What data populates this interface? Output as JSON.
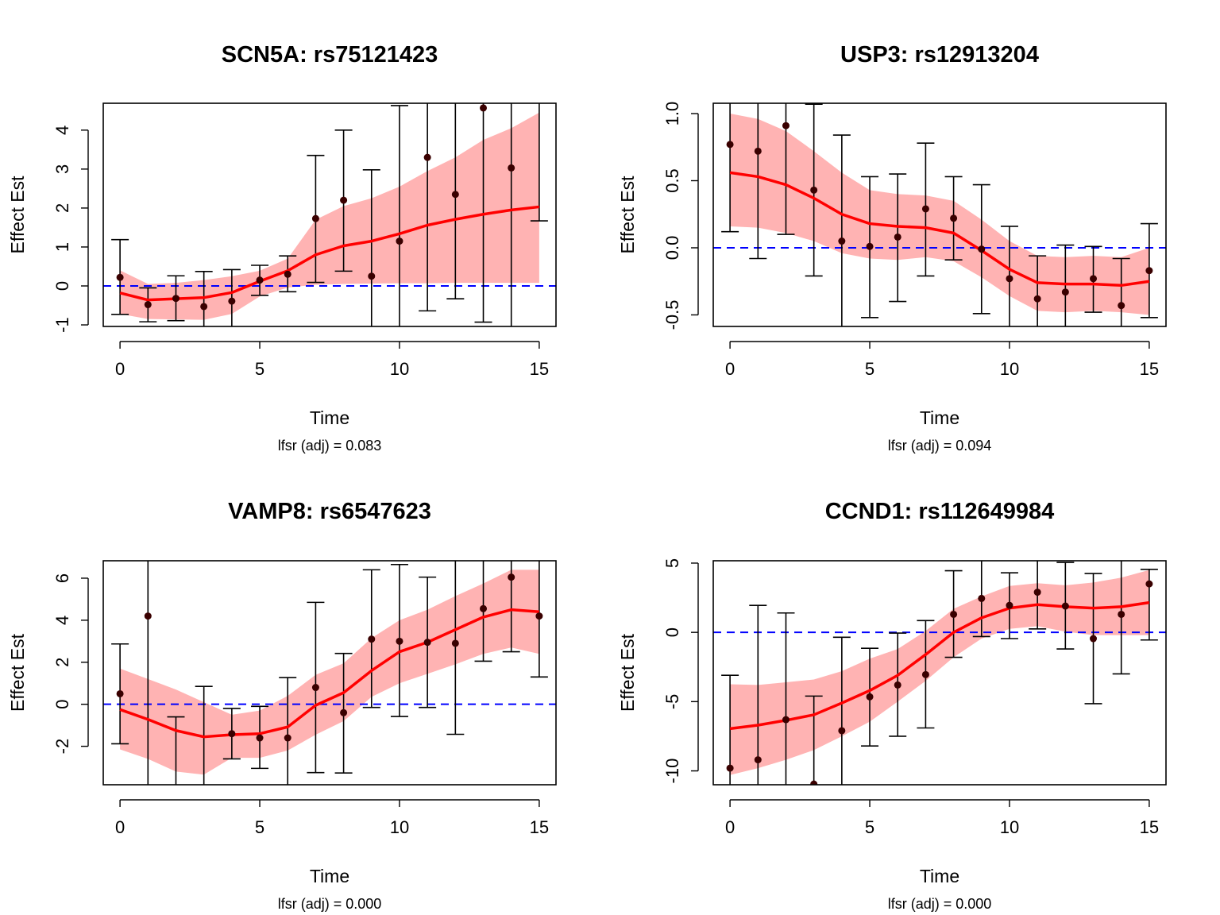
{
  "chart_data": [
    {
      "type": "line",
      "title": "SCN5A: rs75121423",
      "xlabel": "Time",
      "ylabel": "Effect Est",
      "subtitle": "lfsr (adj) = 0.083",
      "xlim": [
        -0.6,
        15.6
      ],
      "ylim": [
        -1.04,
        4.69
      ],
      "xticks": [
        0,
        5,
        10,
        15
      ],
      "yticks": [
        -1,
        0,
        1,
        2,
        3,
        4
      ],
      "reference_line": 0,
      "x": [
        0,
        1,
        2,
        3,
        4,
        5,
        6,
        7,
        8,
        9,
        10,
        11,
        12,
        13,
        14,
        15
      ],
      "points": [
        0.22,
        -0.48,
        -0.32,
        -0.53,
        -0.39,
        0.15,
        0.3,
        1.73,
        2.2,
        0.25,
        1.15,
        3.3,
        2.35,
        4.57,
        3.03,
        null
      ],
      "err_lower": [
        -0.73,
        -0.92,
        -0.89,
        -1.1,
        -1.1,
        -0.24,
        -0.15,
        0.09,
        0.38,
        -1.1,
        -1.1,
        -0.64,
        -0.33,
        -0.93,
        -1.1,
        1.67
      ],
      "err_upper": [
        1.19,
        -0.05,
        0.26,
        0.37,
        0.42,
        0.53,
        0.77,
        3.35,
        4.0,
        2.98,
        4.63,
        4.7,
        4.7,
        4.7,
        4.7,
        4.7
      ],
      "fit": [
        -0.18,
        -0.36,
        -0.33,
        -0.3,
        -0.17,
        0.12,
        0.39,
        0.8,
        1.03,
        1.15,
        1.34,
        1.56,
        1.71,
        1.84,
        1.95,
        2.03
      ],
      "band_lower": [
        -0.72,
        -0.85,
        -0.86,
        -0.87,
        -0.72,
        -0.27,
        -0.04,
        0.03,
        0.05,
        0.06,
        0.07,
        0.07,
        0.08,
        0.08,
        0.08,
        0.08
      ],
      "band_upper": [
        0.4,
        0.05,
        0.08,
        0.15,
        0.25,
        0.39,
        0.7,
        1.7,
        2.05,
        2.25,
        2.55,
        2.95,
        3.3,
        3.75,
        4.05,
        4.45
      ]
    },
    {
      "type": "line",
      "title": "USP3: rs12913204",
      "xlabel": "Time",
      "ylabel": "Effect Est",
      "subtitle": "lfsr (adj) = 0.094",
      "xlim": [
        -0.6,
        15.6
      ],
      "ylim": [
        -0.586,
        1.077
      ],
      "xticks": [
        0,
        5,
        10,
        15
      ],
      "yticks": [
        -0.5,
        0.0,
        0.5,
        1.0
      ],
      "ytick_labels": [
        "-0.5",
        "0.0",
        "0.5",
        "1.0"
      ],
      "reference_line": 0,
      "x": [
        0,
        1,
        2,
        3,
        4,
        5,
        6,
        7,
        8,
        9,
        10,
        11,
        12,
        13,
        14,
        15
      ],
      "points": [
        0.77,
        0.72,
        0.91,
        0.43,
        0.05,
        0.01,
        0.08,
        0.29,
        0.22,
        -0.01,
        -0.23,
        -0.38,
        -0.33,
        -0.23,
        -0.43,
        -0.17
      ],
      "err_lower": [
        0.12,
        -0.08,
        0.1,
        -0.21,
        -0.6,
        -0.52,
        -0.4,
        -0.21,
        -0.09,
        -0.49,
        -0.6,
        -0.6,
        -0.6,
        -0.48,
        -0.6,
        -0.52
      ],
      "err_upper": [
        1.08,
        1.08,
        1.08,
        1.07,
        0.84,
        0.53,
        0.55,
        0.78,
        0.53,
        0.47,
        0.16,
        -0.06,
        0.02,
        0.01,
        -0.08,
        0.18
      ],
      "fit": [
        0.56,
        0.53,
        0.47,
        0.37,
        0.25,
        0.18,
        0.16,
        0.15,
        0.11,
        -0.02,
        -0.16,
        -0.26,
        -0.27,
        -0.27,
        -0.28,
        -0.25
      ],
      "band_lower": [
        0.16,
        0.15,
        0.11,
        0.05,
        -0.04,
        -0.08,
        -0.09,
        -0.07,
        -0.1,
        -0.22,
        -0.36,
        -0.47,
        -0.48,
        -0.47,
        -0.48,
        -0.5
      ],
      "band_upper": [
        1.0,
        0.96,
        0.87,
        0.72,
        0.56,
        0.43,
        0.4,
        0.39,
        0.35,
        0.21,
        0.05,
        -0.06,
        -0.07,
        -0.06,
        -0.07,
        0.0
      ]
    },
    {
      "type": "line",
      "title": "VAMP8: rs6547623",
      "xlabel": "Time",
      "ylabel": "Effect Est",
      "subtitle": "lfsr (adj) = 0.000",
      "xlim": [
        -0.6,
        15.6
      ],
      "ylim": [
        -3.83,
        6.83
      ],
      "xticks": [
        0,
        5,
        10,
        15
      ],
      "yticks": [
        -2,
        0,
        2,
        4,
        6
      ],
      "reference_line": 0,
      "x": [
        0,
        1,
        2,
        3,
        4,
        5,
        6,
        7,
        8,
        9,
        10,
        11,
        12,
        13,
        14,
        15
      ],
      "points": [
        0.5,
        4.2,
        null,
        null,
        -1.4,
        -1.6,
        -1.6,
        0.8,
        -0.4,
        3.1,
        3.0,
        2.95,
        2.9,
        4.55,
        6.05,
        4.2
      ],
      "err_lower": [
        -1.88,
        -3.83,
        -3.83,
        -3.83,
        -2.6,
        -3.05,
        -3.83,
        -3.25,
        -3.27,
        -0.15,
        -0.58,
        -0.15,
        -1.43,
        2.05,
        2.5,
        1.3
      ],
      "err_upper": [
        2.87,
        6.83,
        -0.6,
        0.85,
        -0.2,
        -0.1,
        1.27,
        4.85,
        2.42,
        6.4,
        6.65,
        6.05,
        6.83,
        6.83,
        6.83,
        6.83
      ],
      "fit": [
        -0.25,
        -0.72,
        -1.25,
        -1.55,
        -1.45,
        -1.4,
        -1.08,
        -0.05,
        0.55,
        1.6,
        2.5,
        2.95,
        3.55,
        4.15,
        4.5,
        4.4
      ],
      "band_lower": [
        -2.15,
        -2.6,
        -3.2,
        -3.35,
        -2.55,
        -2.55,
        -2.2,
        -1.45,
        -0.8,
        0.35,
        1.0,
        1.45,
        1.9,
        2.4,
        2.7,
        2.4
      ],
      "band_upper": [
        1.7,
        1.2,
        0.7,
        0.1,
        -0.5,
        -0.3,
        0.4,
        1.4,
        1.95,
        3.15,
        4.0,
        4.5,
        5.15,
        5.75,
        6.4,
        6.4
      ]
    },
    {
      "type": "line",
      "title": "CCND1: rs112649984",
      "xlabel": "Time",
      "ylabel": "Effect Est",
      "subtitle": "lfsr (adj) = 0.000",
      "xlim": [
        -0.6,
        15.6
      ],
      "ylim": [
        -11.0,
        5.17
      ],
      "xticks": [
        0,
        5,
        10,
        15
      ],
      "yticks": [
        -10,
        -5,
        0,
        5
      ],
      "reference_line": 0,
      "x": [
        0,
        1,
        2,
        3,
        4,
        5,
        6,
        7,
        8,
        9,
        10,
        11,
        12,
        13,
        14,
        15
      ],
      "points": [
        -9.8,
        -9.2,
        -6.3,
        -10.95,
        -7.1,
        -4.65,
        -3.8,
        -3.05,
        1.3,
        2.45,
        1.95,
        2.9,
        1.9,
        -0.45,
        1.3,
        3.5
      ],
      "err_lower": [
        -11.0,
        -11.0,
        -11.0,
        -11.0,
        -11.0,
        -8.2,
        -7.5,
        -6.9,
        -1.8,
        -0.3,
        -0.45,
        0.25,
        -1.2,
        -5.15,
        -3.0,
        -0.55
      ],
      "err_upper": [
        -3.1,
        1.95,
        1.4,
        -4.6,
        -0.35,
        -1.15,
        -0.05,
        0.85,
        4.45,
        5.17,
        4.3,
        5.17,
        5.05,
        4.25,
        5.17,
        4.55
      ],
      "fit": [
        -6.95,
        -6.7,
        -6.35,
        -5.95,
        -5.1,
        -4.2,
        -3.1,
        -1.6,
        0.0,
        1.05,
        1.75,
        2.0,
        1.85,
        1.75,
        1.85,
        2.15
      ],
      "band_lower": [
        -10.3,
        -9.8,
        -9.2,
        -8.5,
        -7.5,
        -6.45,
        -5.0,
        -3.5,
        -1.8,
        -0.45,
        0.25,
        0.45,
        0.05,
        -0.2,
        -0.2,
        -0.2
      ],
      "band_upper": [
        -3.75,
        -3.8,
        -3.6,
        -3.4,
        -2.8,
        -1.9,
        -1.2,
        0.1,
        1.7,
        2.6,
        3.35,
        3.55,
        3.4,
        3.6,
        3.95,
        4.5
      ]
    }
  ],
  "colors": {
    "fit_line": "#ff0000",
    "band": "#ffb3b3",
    "reference_line": "#0000ff",
    "points": "#3a0000",
    "axes": "#000000"
  }
}
